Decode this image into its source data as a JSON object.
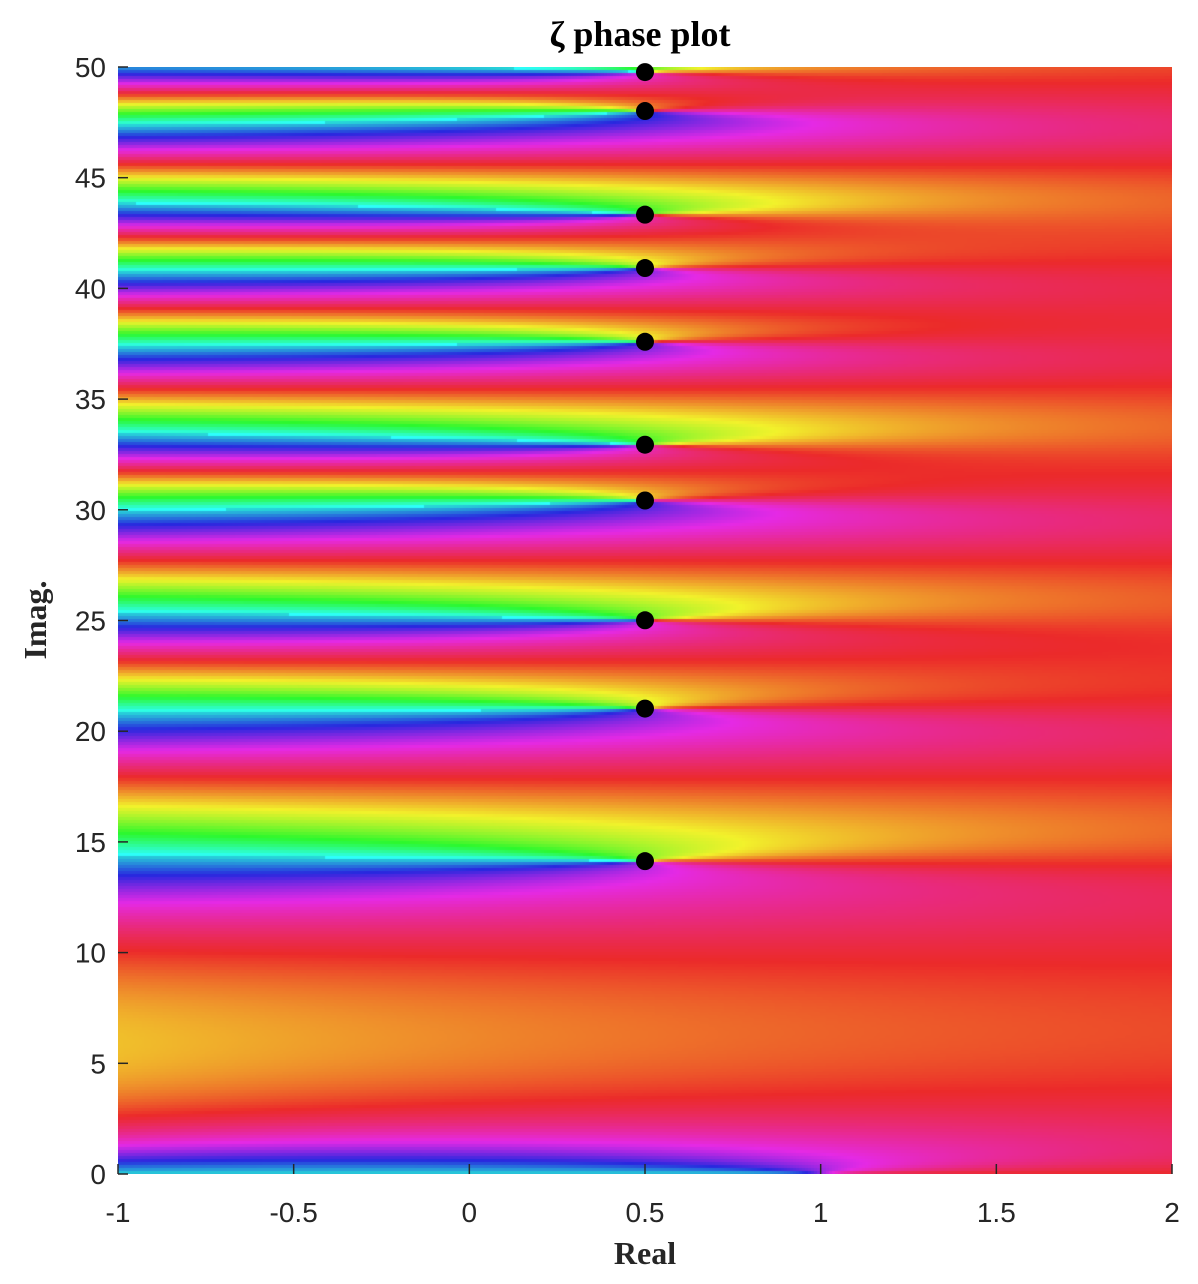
{
  "chart_data": {
    "type": "heatmap",
    "title": "ζ phase plot",
    "xlabel": "Real",
    "ylabel": "Imag.",
    "xlim": [
      -1,
      2
    ],
    "ylim": [
      0,
      50
    ],
    "x_ticks": [
      -1,
      -0.5,
      0,
      0.5,
      1,
      1.5,
      2
    ],
    "x_tick_labels": [
      "-1",
      "-0.5",
      "0",
      "0.5",
      "1",
      "1.5",
      "2"
    ],
    "y_ticks": [
      0,
      5,
      10,
      15,
      20,
      25,
      30,
      35,
      40,
      45,
      50
    ],
    "y_tick_labels": [
      "0",
      "5",
      "10",
      "15",
      "20",
      "25",
      "30",
      "35",
      "40",
      "45",
      "50"
    ],
    "colormap": "hsv phase",
    "grid": false,
    "legend": "none",
    "zeros": [
      {
        "x": 0.5,
        "y": 14.13
      },
      {
        "x": 0.5,
        "y": 21.02
      },
      {
        "x": 0.5,
        "y": 25.01
      },
      {
        "x": 0.5,
        "y": 30.42
      },
      {
        "x": 0.5,
        "y": 32.94
      },
      {
        "x": 0.5,
        "y": 37.59
      },
      {
        "x": 0.5,
        "y": 40.92
      },
      {
        "x": 0.5,
        "y": 43.33
      },
      {
        "x": 0.5,
        "y": 48.01
      },
      {
        "x": 0.5,
        "y": 49.77
      }
    ],
    "marker_color": "#000000"
  }
}
